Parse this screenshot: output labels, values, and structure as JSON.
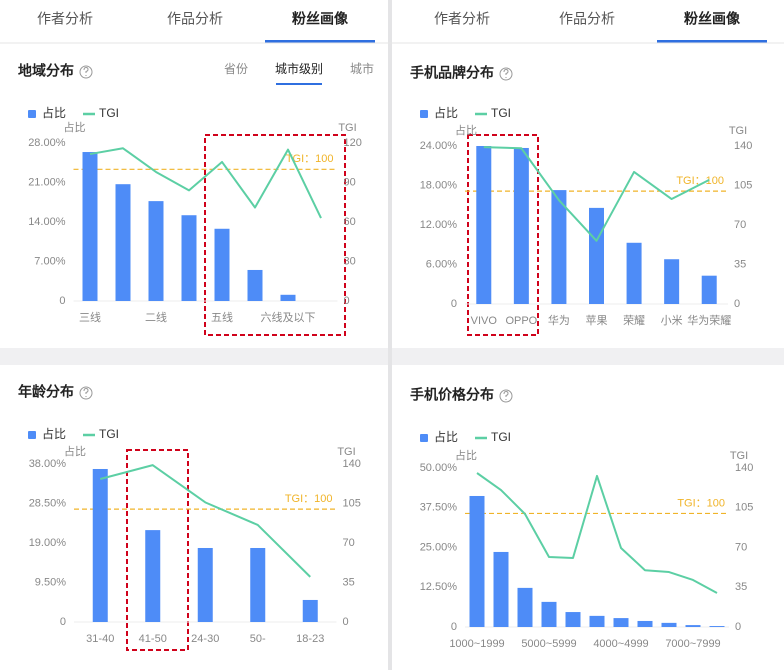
{
  "panels": [
    {
      "tabs": [
        "作者分析",
        "作品分析",
        "粉丝画像"
      ],
      "active": 2
    },
    {
      "tabs": [
        "作者分析",
        "作品分析",
        "粉丝画像"
      ],
      "active": 2
    }
  ],
  "chart_data": [
    {
      "type": "combo",
      "title": "地域分布",
      "tabs": [
        "省份",
        "城市级别",
        "城市"
      ],
      "active_tab": 1,
      "y_label": "占比",
      "y2_label": "TGI",
      "categories": [
        "三线",
        null,
        "二线",
        null,
        "五线",
        null,
        "六线及以下",
        null
      ],
      "series": [
        {
          "name": "占比",
          "color": "#4e8cf7",
          "type": "bar",
          "values": [
            26.4,
            20.7,
            17.7,
            15.2,
            12.8,
            5.5,
            1.1,
            null
          ]
        },
        {
          "name": "TGI",
          "color": "#5ccfa4",
          "type": "line",
          "axis": "y2",
          "values": [
            111.6,
            116,
            98,
            84,
            105.6,
            71,
            115,
            63
          ]
        }
      ],
      "ylim": [
        0,
        28
      ],
      "yticks": [
        0,
        {
          "value": 7,
          "label": "7.00%"
        },
        {
          "value": 14,
          "label": "14.00%"
        },
        {
          "value": 21,
          "label": "21.00%"
        },
        {
          "value": 28,
          "label": "28.00%"
        }
      ],
      "y2lim": [
        0,
        120
      ],
      "y2ticks": [
        0,
        30,
        60,
        90,
        120
      ],
      "reference": {
        "value": 100,
        "label": "TGI：100",
        "color": "#f0b429"
      }
    },
    {
      "type": "combo",
      "title": "手机品牌分布",
      "y_label": "占比",
      "y2_label": "TGI",
      "categories": [
        "VIVO",
        "OPPO",
        "华为",
        "苹果",
        "荣耀",
        "小米",
        "华为荣耀"
      ],
      "series": [
        {
          "name": "占比",
          "color": "#4e8cf7",
          "type": "bar",
          "values": [
            24,
            23.7,
            17.3,
            14.6,
            9.3,
            6.8,
            4.3
          ]
        },
        {
          "name": "TGI",
          "color": "#5ccfa4",
          "type": "line",
          "axis": "y2",
          "values": [
            139,
            138,
            92,
            56,
            117,
            93,
            110
          ]
        }
      ],
      "ylim": [
        0,
        24
      ],
      "yticks": [
        0,
        {
          "value": 6,
          "label": "6.00%"
        },
        {
          "value": 12,
          "label": "12.00%"
        },
        {
          "value": 18,
          "label": "18.00%"
        },
        {
          "value": 24,
          "label": "24.00%"
        }
      ],
      "y2lim": [
        0,
        140
      ],
      "y2ticks": [
        0,
        35,
        70,
        105,
        140
      ],
      "reference": {
        "value": 100,
        "label": "TGI：100",
        "color": "#f0b429"
      }
    },
    {
      "type": "combo",
      "title": "年龄分布",
      "y_label": "占比",
      "y2_label": "TGI",
      "categories": [
        "31-40",
        "41-50",
        "24-30",
        "50-",
        "18-23"
      ],
      "series": [
        {
          "name": "占比",
          "color": "#4e8cf7",
          "type": "bar",
          "values": [
            36.8,
            22.1,
            17.8,
            17.8,
            5.3
          ]
        },
        {
          "name": "TGI",
          "color": "#5ccfa4",
          "type": "line",
          "axis": "y2",
          "values": [
            126.7,
            139,
            106,
            86,
            40
          ]
        }
      ],
      "ylim": [
        0,
        38
      ],
      "yticks": [
        0,
        {
          "value": 9.5,
          "label": "9.50%"
        },
        {
          "value": 19,
          "label": "19.00%"
        },
        {
          "value": 28.5,
          "label": "28.50%"
        },
        {
          "value": 38,
          "label": "38.00%"
        }
      ],
      "y2lim": [
        0,
        140
      ],
      "y2ticks": [
        0,
        35,
        70,
        105,
        140
      ],
      "reference": {
        "value": 100,
        "label": "TGI：100",
        "color": "#f0b429"
      }
    },
    {
      "type": "combo",
      "title": "手机价格分布",
      "y_label": "占比",
      "y2_label": "TGI",
      "categories": [
        "1000~1999",
        null,
        null,
        "5000~5999",
        null,
        null,
        "4000~4999",
        null,
        null,
        "7000~7999",
        null
      ],
      "series": [
        {
          "name": "占比",
          "color": "#4e8cf7",
          "type": "bar",
          "values": [
            41.2,
            23.6,
            12.3,
            7.9,
            4.7,
            3.5,
            2.8,
            1.9,
            1.3,
            0.6,
            0.3
          ]
        },
        {
          "name": "TGI",
          "color": "#5ccfa4",
          "type": "line",
          "axis": "y2",
          "values": [
            135.6,
            120.6,
            99.5,
            61.6,
            60.8,
            133,
            69.6,
            50,
            48.4,
            41.4,
            29.9
          ]
        }
      ],
      "ylim": [
        0,
        50
      ],
      "yticks": [
        0,
        {
          "value": 12.5,
          "label": "12.50%"
        },
        {
          "value": 25,
          "label": "25.00%"
        },
        {
          "value": 37.5,
          "label": "37.50%"
        },
        {
          "value": 50,
          "label": "50.00%"
        }
      ],
      "y2lim": [
        0,
        140
      ],
      "y2ticks": [
        0,
        35,
        70,
        105,
        140
      ],
      "reference": {
        "value": 100,
        "label": "TGI：100",
        "color": "#f0b429"
      }
    }
  ]
}
